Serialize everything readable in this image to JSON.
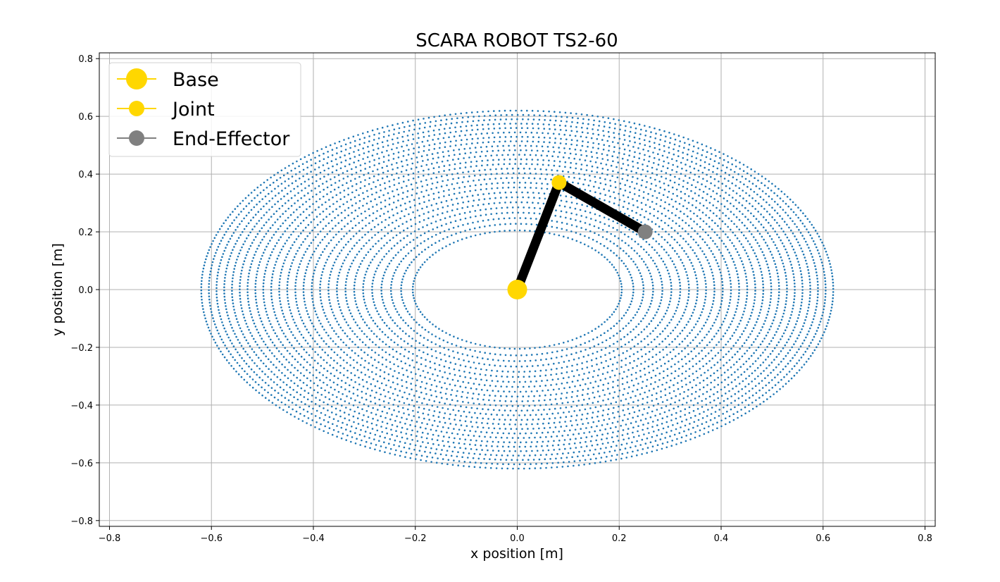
{
  "chart_data": {
    "type": "scatter",
    "title": "SCARA ROBOT TS2-60",
    "xlabel": "x position [m]",
    "ylabel": "y position [m]",
    "xlim": [
      -0.82,
      0.82
    ],
    "ylim": [
      -0.82,
      0.82
    ],
    "grid": true,
    "x_ticks": [
      -0.8,
      -0.6,
      -0.4,
      -0.2,
      0.0,
      0.2,
      0.4,
      0.6,
      0.8
    ],
    "y_ticks": [
      -0.8,
      -0.6,
      -0.4,
      -0.2,
      0.0,
      0.2,
      0.4,
      0.6,
      0.8
    ],
    "x_tick_labels": [
      "−0.8",
      "−0.6",
      "−0.4",
      "−0.2",
      "0.0",
      "0.2",
      "0.4",
      "0.6",
      "0.8"
    ],
    "y_tick_labels": [
      "−0.8",
      "−0.6",
      "−0.4",
      "−0.2",
      "0.0",
      "0.2",
      "0.4",
      "0.6",
      "0.8"
    ],
    "workspace": {
      "shape": "annulus",
      "center": [
        0.0,
        0.0
      ],
      "inner_radius": 0.205,
      "outer_radius": 0.62,
      "color": "#1f77b4"
    },
    "arm": {
      "color": "#000000",
      "points": [
        [
          0.0,
          0.0
        ],
        [
          0.082,
          0.371
        ],
        [
          0.251,
          0.2
        ]
      ]
    },
    "legend": {
      "position": "upper-left",
      "entries": [
        {
          "label": "Base",
          "color": "#FFD700",
          "size": "large"
        },
        {
          "label": "Joint",
          "color": "#FFD700",
          "size": "medium"
        },
        {
          "label": "End-Effector",
          "color": "#808080",
          "size": "medium"
        }
      ]
    },
    "markers": {
      "base": {
        "x": 0.0,
        "y": 0.0,
        "color": "#FFD700"
      },
      "joint": {
        "x": 0.082,
        "y": 0.371,
        "color": "#FFD700"
      },
      "end_effector": {
        "x": 0.251,
        "y": 0.2,
        "color": "#808080"
      }
    }
  }
}
